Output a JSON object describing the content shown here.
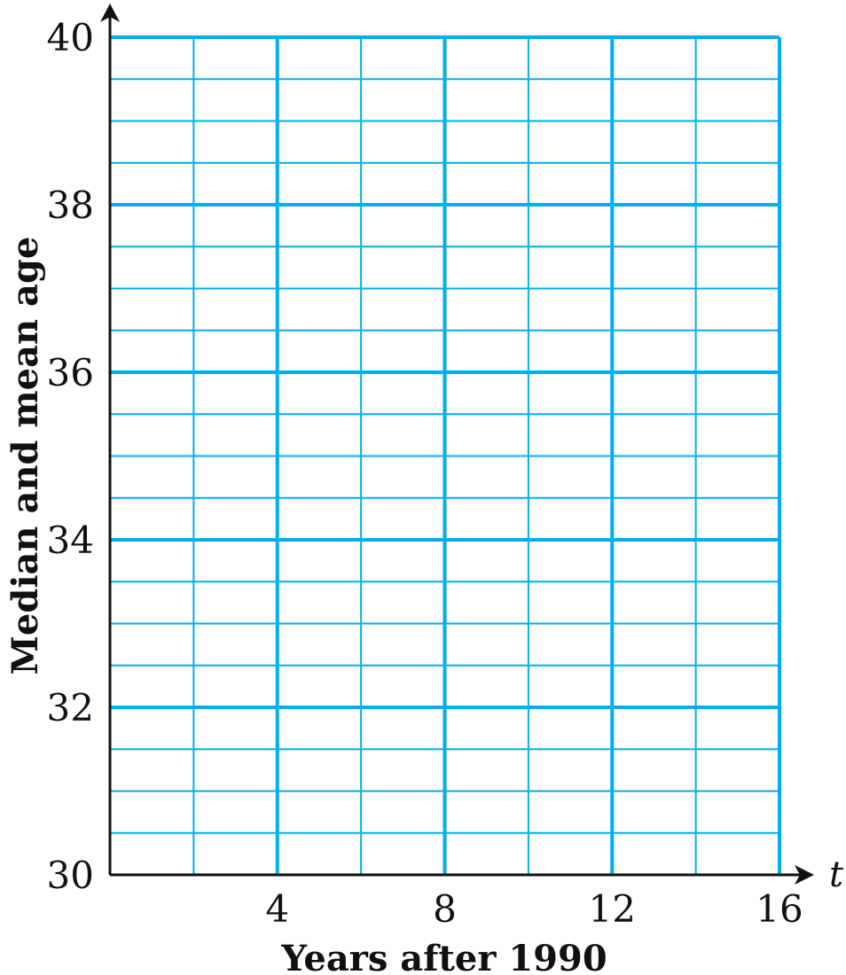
{
  "chart_data": {
    "type": "line",
    "title": "",
    "xlabel": "Years after 1990",
    "ylabel": "Median and mean age",
    "x_variable": "t",
    "xlim": [
      0,
      16
    ],
    "ylim": [
      30,
      40
    ],
    "x_ticks": [
      4,
      8,
      12,
      16
    ],
    "y_ticks": [
      30,
      32,
      34,
      36,
      38,
      40
    ],
    "x_tick_labels": [
      "4",
      "8",
      "12",
      "16"
    ],
    "y_tick_labels": [
      "30",
      "32",
      "34",
      "36",
      "38",
      "40"
    ],
    "x_minor_step": 2,
    "y_minor_step": 0.5,
    "grid": true,
    "grid_color": "#00AEEF",
    "series": []
  }
}
